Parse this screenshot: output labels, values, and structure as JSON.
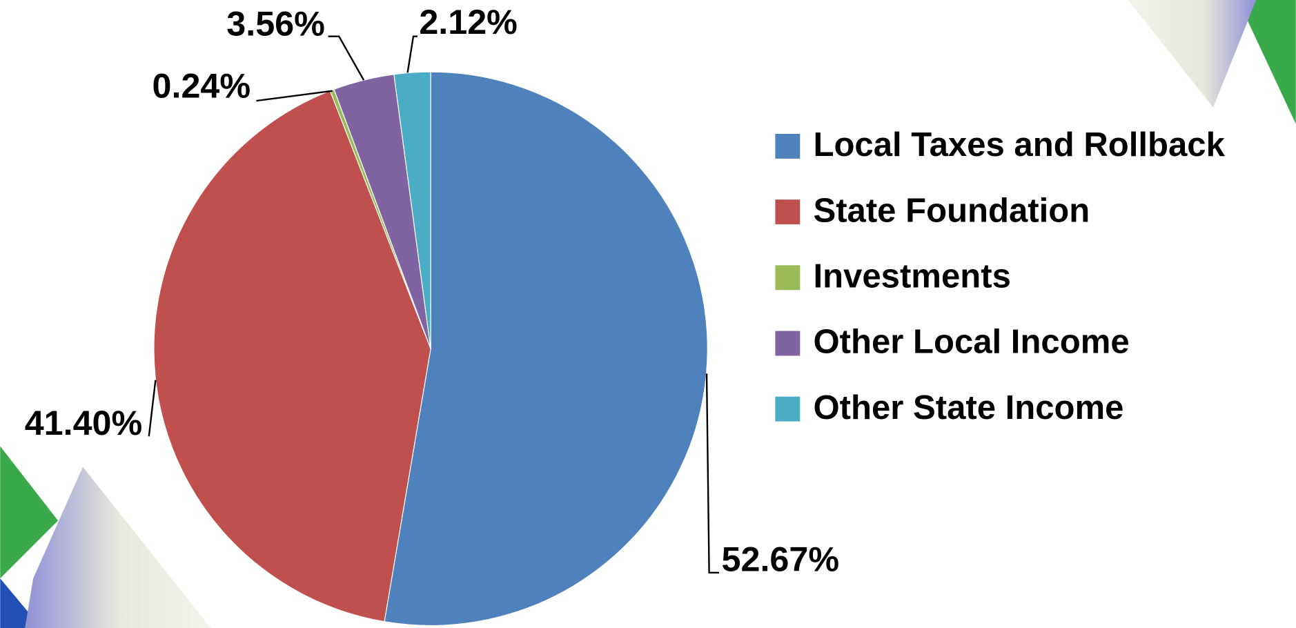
{
  "chart_data": {
    "type": "pie",
    "categories": [
      "Local Taxes and Rollback",
      "State Foundation",
      "Investments",
      "Other Local Income",
      "Other State Income"
    ],
    "values": [
      52.67,
      41.4,
      0.24,
      3.56,
      2.12
    ],
    "value_labels": [
      "52.67%",
      "41.40%",
      "0.24%",
      "3.56%",
      "2.12%"
    ],
    "colors": [
      "#4f81bd",
      "#c0504d",
      "#9bbb59",
      "#8064a2",
      "#4bacc6"
    ],
    "legend": "right"
  }
}
